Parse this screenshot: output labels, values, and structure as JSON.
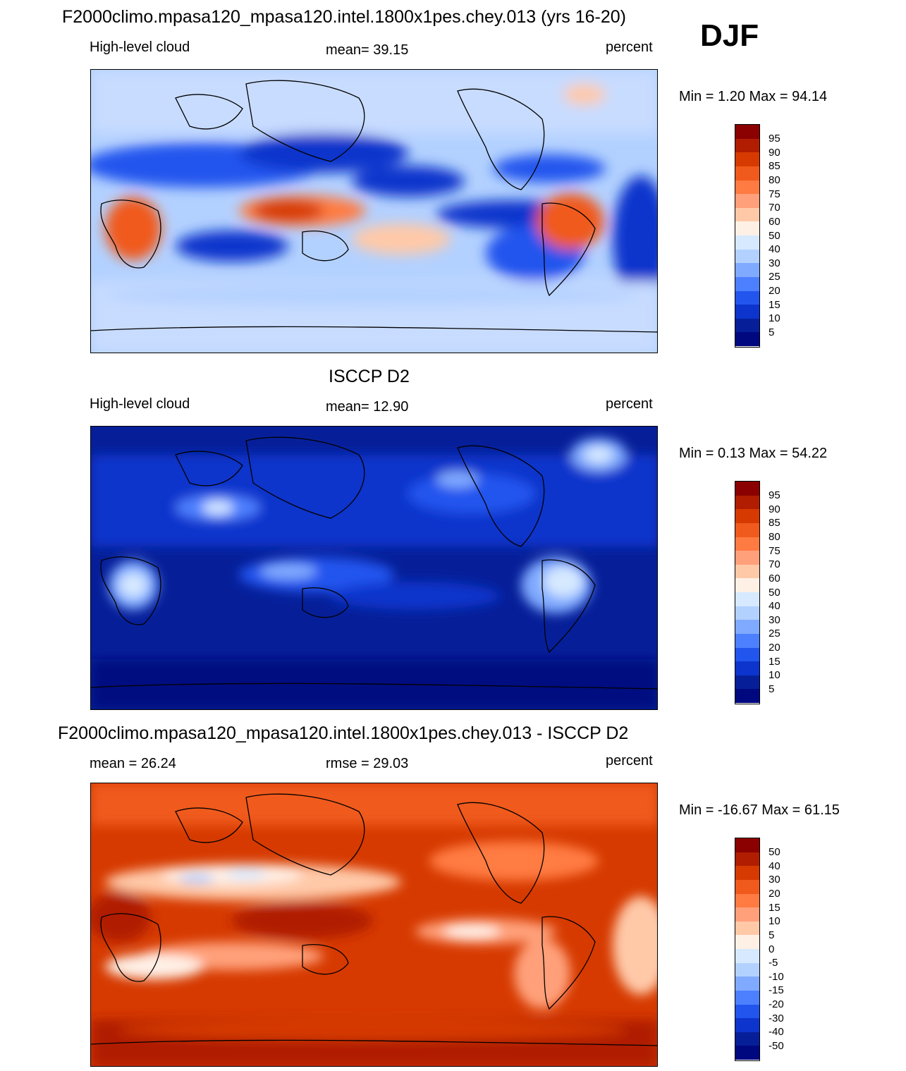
{
  "season": "DJF",
  "panels": [
    {
      "title": "F2000climo.mpasa120_mpasa120.intel.1800x1pes.chey.013 (yrs 16-20)",
      "left_label": "High-level cloud",
      "center_label": "mean=  39.15",
      "units": "percent",
      "minmax": "Min =   1.20 Max =  94.14",
      "colorbar": [
        "95",
        "90",
        "85",
        "80",
        "75",
        "70",
        "60",
        "50",
        "40",
        "30",
        "25",
        "20",
        "15",
        "10",
        "5"
      ],
      "colors": [
        "#8b0000",
        "#b01d00",
        "#d63a00",
        "#f05a1c",
        "#ff7b42",
        "#ffa07a",
        "#ffc9a8",
        "#fff0e6",
        "#d6e9ff",
        "#b3d1ff",
        "#80aaff",
        "#4d80ff",
        "#2255ee",
        "#0d34cc",
        "#061f99",
        "#000880"
      ]
    },
    {
      "title": "ISCCP D2",
      "left_label": "High-level cloud",
      "center_label": "mean=  12.90",
      "units": "percent",
      "minmax": "Min =   0.13 Max =  54.22",
      "colorbar": [
        "95",
        "90",
        "85",
        "80",
        "75",
        "70",
        "60",
        "50",
        "40",
        "30",
        "25",
        "20",
        "15",
        "10",
        "5"
      ],
      "colors": [
        "#8b0000",
        "#b01d00",
        "#d63a00",
        "#f05a1c",
        "#ff7b42",
        "#ffa07a",
        "#ffc9a8",
        "#fff0e6",
        "#d6e9ff",
        "#b3d1ff",
        "#80aaff",
        "#4d80ff",
        "#2255ee",
        "#0d34cc",
        "#061f99",
        "#000880"
      ]
    },
    {
      "title": "F2000climo.mpasa120_mpasa120.intel.1800x1pes.chey.013 - ISCCP D2",
      "left_label": "mean =  26.24",
      "center_label": "rmse =  29.03",
      "units": "percent",
      "minmax": "Min = -16.67 Max =  61.15",
      "colorbar": [
        "50",
        "40",
        "30",
        "20",
        "15",
        "10",
        "5",
        "0",
        "-5",
        "-10",
        "-15",
        "-20",
        "-30",
        "-40",
        "-50"
      ],
      "colors": [
        "#8b0000",
        "#b01d00",
        "#d63a00",
        "#f05a1c",
        "#ff7b42",
        "#ffa07a",
        "#ffc9a8",
        "#fff0e6",
        "#d6e9ff",
        "#b3d1ff",
        "#80aaff",
        "#4d80ff",
        "#2255ee",
        "#0d34cc",
        "#061f99",
        "#000880"
      ]
    }
  ],
  "chart_data": [
    {
      "type": "heatmap",
      "title": "F2000climo.mpasa120_mpasa120.intel.1800x1pes.chey.013 (yrs 16-20)",
      "variable": "High-level cloud",
      "units": "percent",
      "mean": 39.15,
      "min": 1.2,
      "max": 94.14,
      "levels": [
        5,
        10,
        15,
        20,
        25,
        30,
        40,
        50,
        60,
        70,
        75,
        80,
        85,
        90,
        95
      ]
    },
    {
      "type": "heatmap",
      "title": "ISCCP D2",
      "variable": "High-level cloud",
      "units": "percent",
      "mean": 12.9,
      "min": 0.13,
      "max": 54.22,
      "levels": [
        5,
        10,
        15,
        20,
        25,
        30,
        40,
        50,
        60,
        70,
        75,
        80,
        85,
        90,
        95
      ]
    },
    {
      "type": "heatmap",
      "title": "F2000climo.mpasa120_mpasa120.intel.1800x1pes.chey.013 - ISCCP D2",
      "units": "percent",
      "mean": 26.24,
      "rmse": 29.03,
      "min": -16.67,
      "max": 61.15,
      "levels": [
        -50,
        -40,
        -30,
        -20,
        -15,
        -10,
        -5,
        0,
        5,
        10,
        15,
        20,
        30,
        40,
        50
      ]
    }
  ]
}
